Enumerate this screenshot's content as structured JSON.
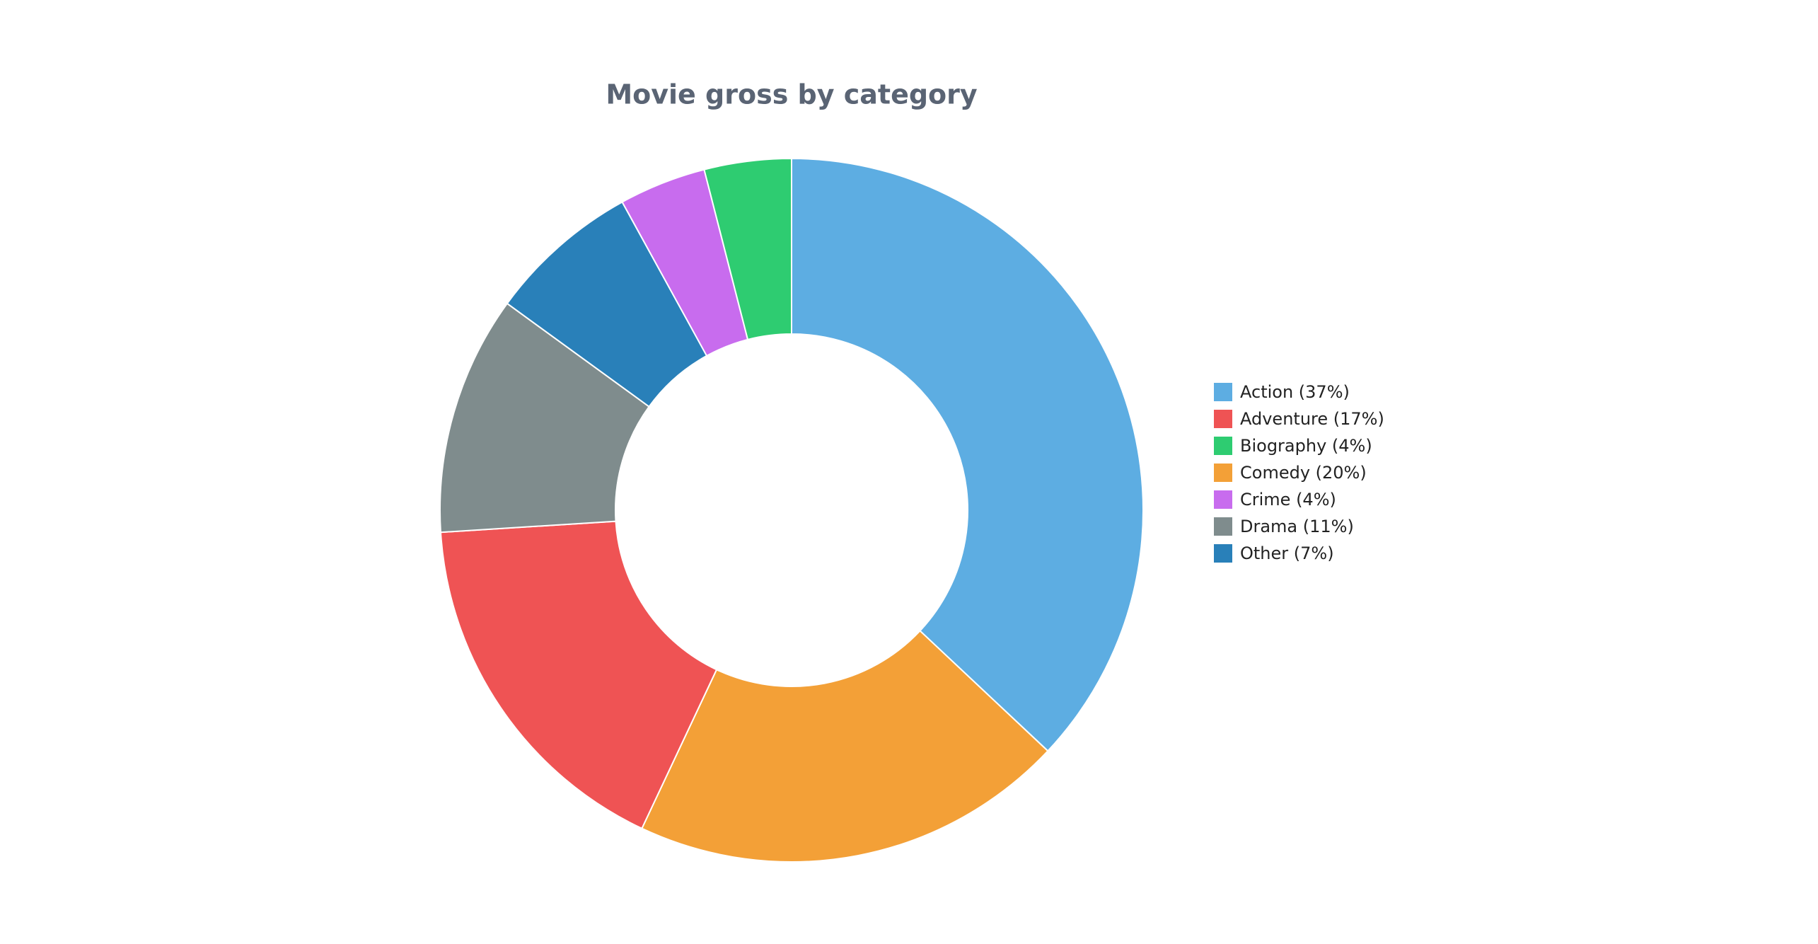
{
  "chart_data": {
    "type": "donut",
    "title": "Movie gross by category",
    "categories": [
      "Action (37%)",
      "Comedy (20%)",
      "Adventure (17%)",
      "Drama (11%)",
      "Other (7%)",
      "Crime (4%)",
      "Biography (4%)"
    ],
    "values": [
      37,
      20,
      17,
      11,
      7,
      4,
      4
    ],
    "colors": [
      "#5dade2",
      "#f3a037",
      "#ef5354",
      "#7f8c8d",
      "#2980b9",
      "#c86cee",
      "#2ecc71"
    ],
    "legend": "right"
  }
}
